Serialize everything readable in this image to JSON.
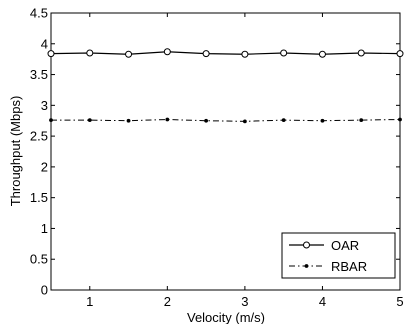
{
  "chart_data": {
    "type": "line",
    "title": "",
    "xlabel": "Velocity (m/s)",
    "ylabel": "Throughput (Mbps)",
    "xlim": [
      0.5,
      5
    ],
    "ylim": [
      0,
      4.5
    ],
    "xticks": [
      1,
      2,
      3,
      4,
      5
    ],
    "xtick_labels": [
      "1",
      "2",
      "3",
      "4",
      "5"
    ],
    "yticks": [
      0,
      0.5,
      1,
      1.5,
      2,
      2.5,
      3,
      3.5,
      4,
      4.5
    ],
    "ytick_labels": [
      "0",
      "0.5",
      "1",
      "1.5",
      "2",
      "2.5",
      "3",
      "3.5",
      "4",
      "4.5"
    ],
    "grid": false,
    "legend_position": "bottom-right",
    "x": [
      0.5,
      1,
      1.5,
      2,
      2.5,
      3,
      3.5,
      4,
      4.5,
      5
    ],
    "series": [
      {
        "name": "OAR",
        "style": "solid",
        "marker": "open-circle",
        "color": "#000000",
        "values": [
          3.84,
          3.85,
          3.83,
          3.87,
          3.84,
          3.83,
          3.85,
          3.83,
          3.85,
          3.84
        ]
      },
      {
        "name": "RBAR",
        "style": "dash-dot",
        "marker": "dot",
        "color": "#000000",
        "values": [
          2.76,
          2.76,
          2.75,
          2.77,
          2.75,
          2.74,
          2.76,
          2.75,
          2.76,
          2.77
        ]
      }
    ]
  }
}
